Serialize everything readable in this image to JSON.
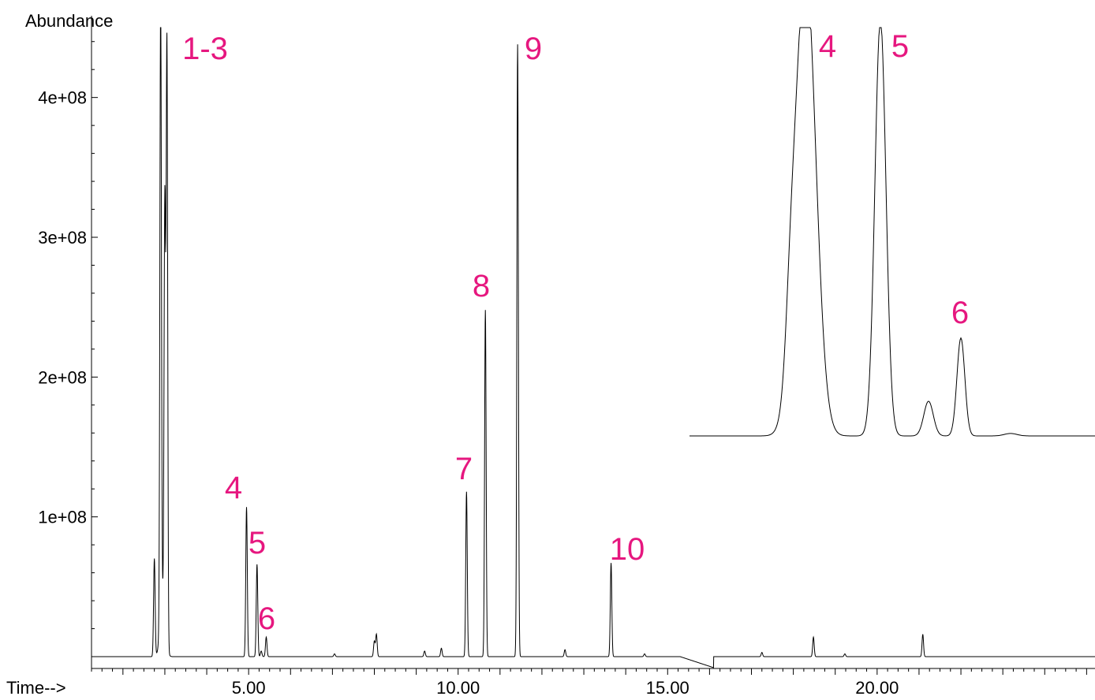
{
  "chart_data": {
    "type": "line",
    "title": "",
    "ylabel": "Abundance",
    "xlabel": "Time-->",
    "xlim": [
      1.25,
      25.2
    ],
    "ylim": [
      0,
      450000000
    ],
    "x_ticks": [
      5,
      10,
      15,
      20
    ],
    "x_tick_labels": [
      "5.00",
      "10.00",
      "15.00",
      "20.00"
    ],
    "y_ticks": [
      100000000,
      200000000,
      300000000,
      400000000
    ],
    "y_tick_labels": [
      "1e+08",
      "2e+08",
      "3e+08",
      "4e+08"
    ],
    "grid": false,
    "colors": {
      "trace": "#000000",
      "labels": "#e6177f"
    },
    "series": [
      {
        "values_note_removed": true,
        "baseline": 0,
        "peaks": [
          {
            "x": 2.75,
            "y": 70000000
          },
          {
            "x": 2.9,
            "y": 450000000
          },
          {
            "x": 3.0,
            "y": 300000000
          },
          {
            "x": 3.05,
            "y": 430000000
          },
          {
            "x": 4.95,
            "y": 107000000
          },
          {
            "x": 5.2,
            "y": 66000000
          },
          {
            "x": 5.3,
            "y": 4000000
          },
          {
            "x": 5.42,
            "y": 14000000
          },
          {
            "x": 7.05,
            "y": 2000000
          },
          {
            "x": 8.0,
            "y": 11000000
          },
          {
            "x": 8.05,
            "y": 16000000
          },
          {
            "x": 9.2,
            "y": 4000000
          },
          {
            "x": 9.6,
            "y": 6000000
          },
          {
            "x": 10.2,
            "y": 118000000
          },
          {
            "x": 10.65,
            "y": 248000000
          },
          {
            "x": 11.42,
            "y": 438000000
          },
          {
            "x": 12.55,
            "y": 5000000
          },
          {
            "x": 13.65,
            "y": 67000000
          },
          {
            "x": 14.45,
            "y": 2000000
          },
          {
            "x": 17.25,
            "y": 3000000
          },
          {
            "x": 18.48,
            "y": 14000000
          },
          {
            "x": 19.23,
            "y": 2000000
          },
          {
            "x": 21.09,
            "y": 16000000
          }
        ]
      }
    ],
    "inset": {
      "description_removed": true,
      "peaks": [
        {
          "label": "4",
          "rel_height": 1.0
        },
        {
          "label": "5",
          "rel_height": 1.0
        },
        {
          "label": "6",
          "rel_height": 0.24
        }
      ]
    },
    "peak_labels": [
      "1-3",
      "4",
      "5",
      "6",
      "7",
      "8",
      "9",
      "10"
    ],
    "inset_labels": [
      "4",
      "5",
      "6"
    ]
  }
}
